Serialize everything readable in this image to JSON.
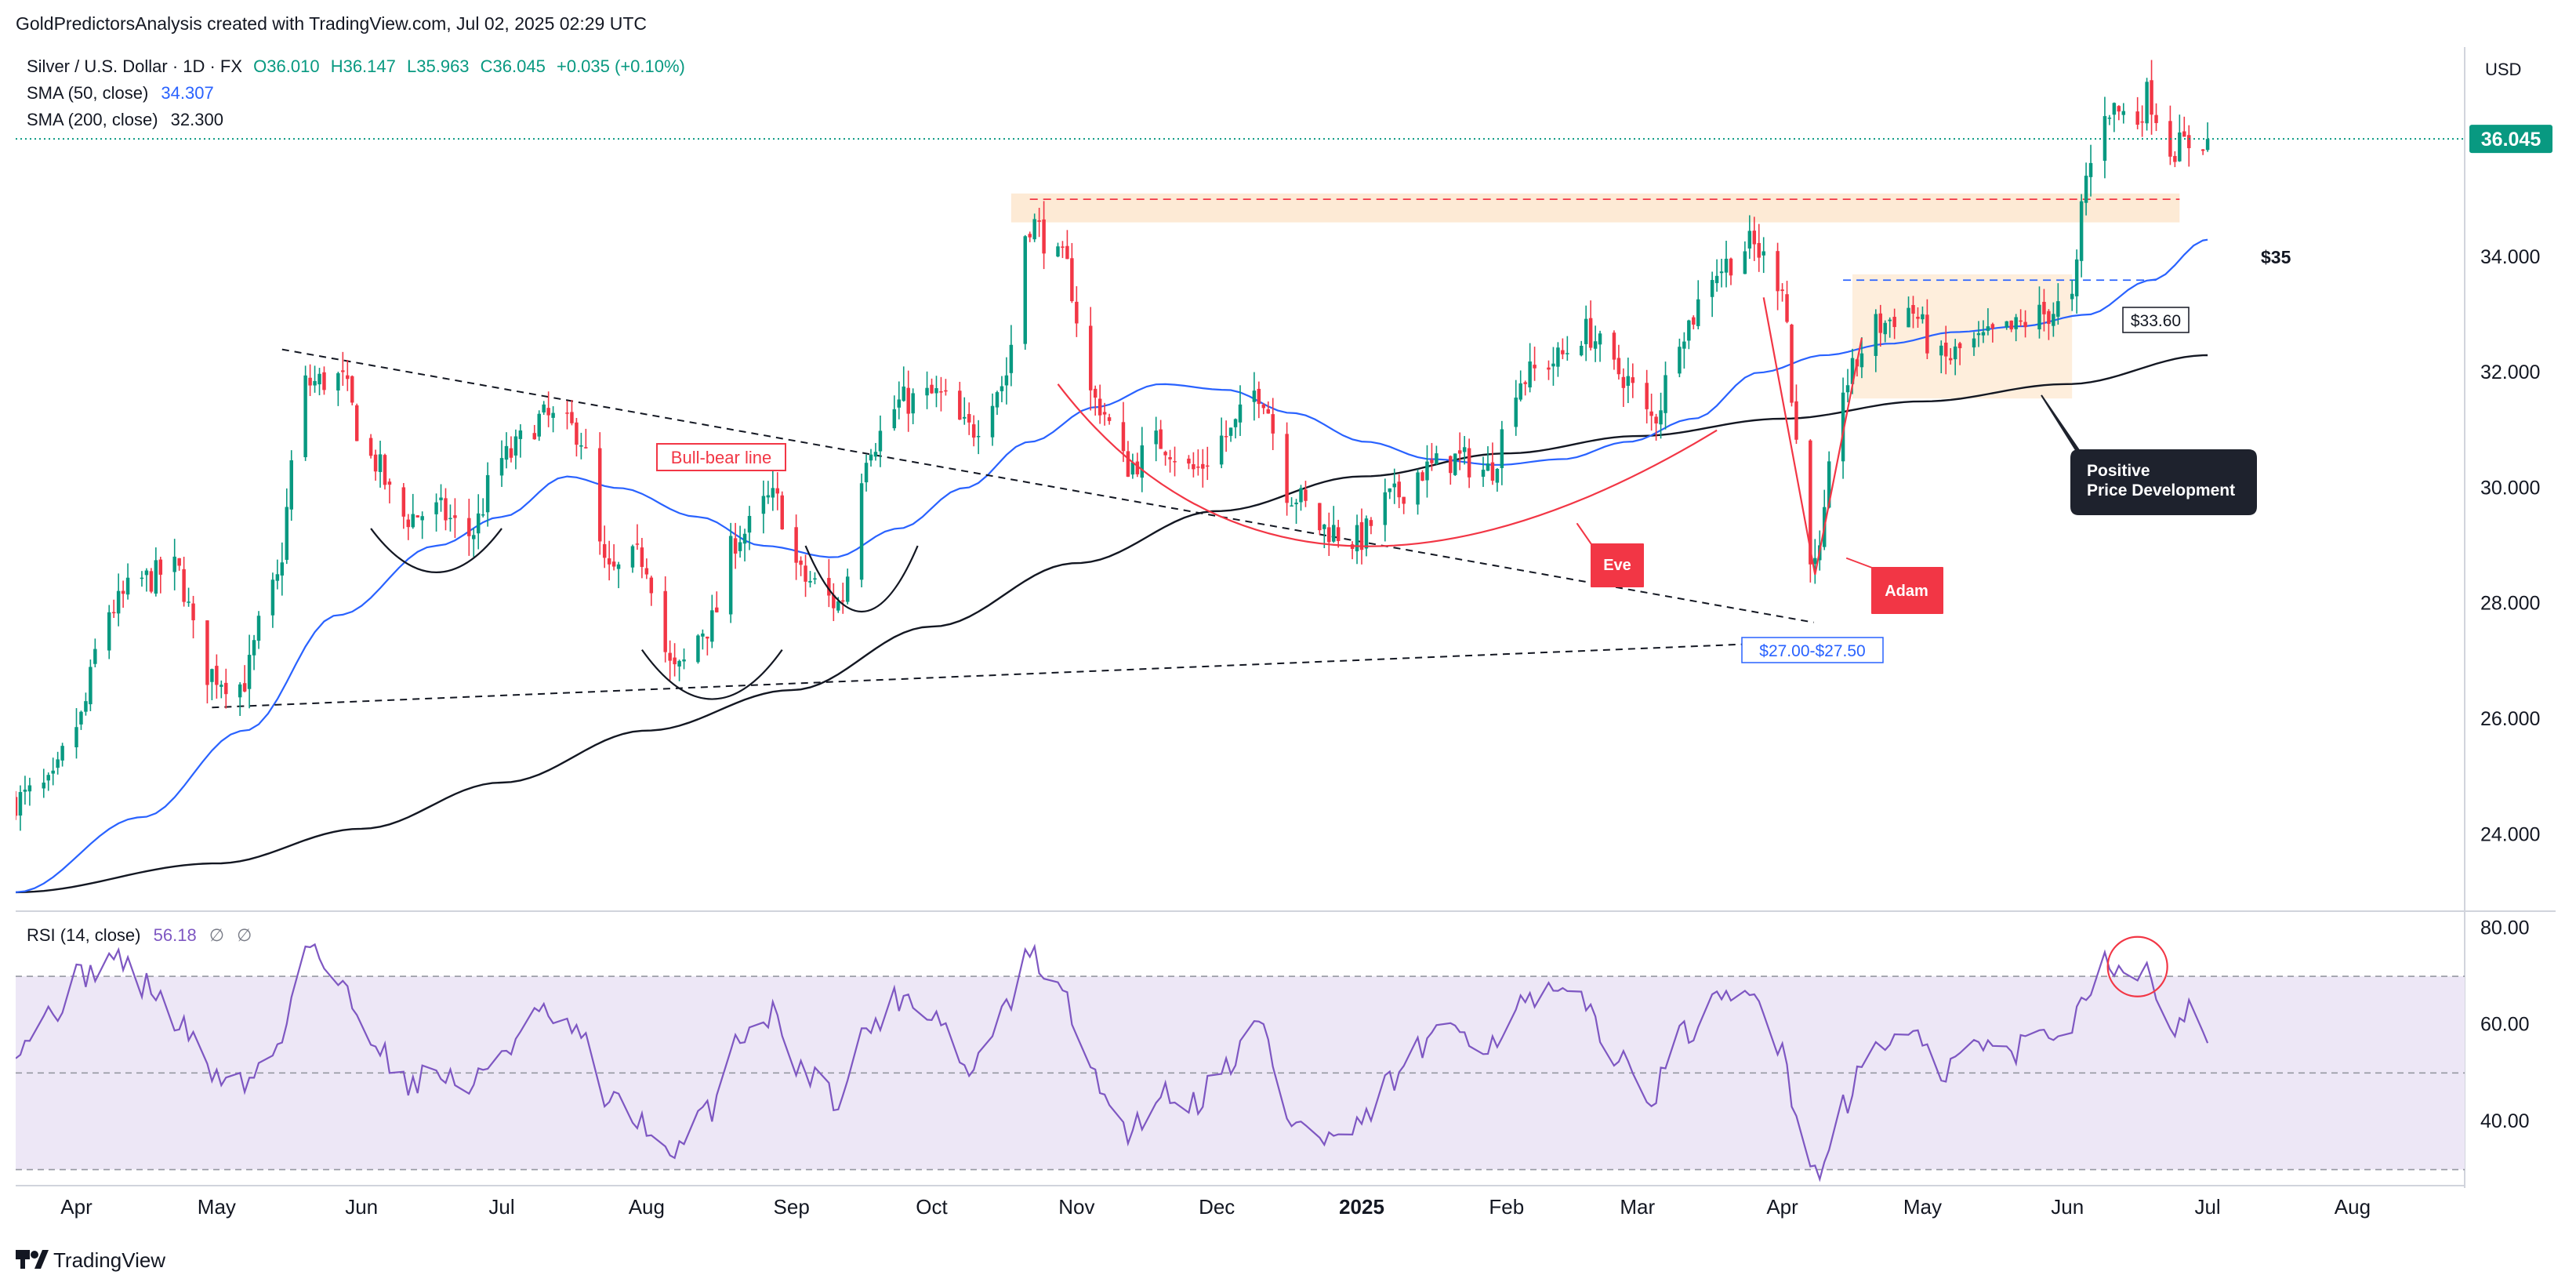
{
  "header": {
    "credit": "GoldPredictorsAnalysis created with TradingView.com, Jul 02, 2025 02:29 UTC"
  },
  "legend": {
    "symbol": "Silver / U.S. Dollar · 1D · FX",
    "open": "O36.010",
    "high": "H36.147",
    "low": "L35.963",
    "close": "C36.045",
    "change": "+0.035 (+0.10%)",
    "sma50_label": "SMA (50, close)",
    "sma50_value": "34.307",
    "sma200_label": "SMA (200, close)",
    "sma200_value": "32.300"
  },
  "rsi_legend": {
    "label": "RSI (14, close)",
    "value": "56.18",
    "extra1": "∅",
    "extra2": "∅"
  },
  "currency": "USD",
  "footer": {
    "brand": "TradingView"
  },
  "colors": {
    "up": "#089981",
    "down": "#f23645",
    "sma50": "#2962ff",
    "sma200": "#131722",
    "rsi": "#7e57c2",
    "rsi_band": "#ede7f6",
    "annotation_red": "#f23645",
    "zone": "#fde8d0",
    "price_tag": "#089981"
  },
  "annotations": {
    "bull_bear": "Bull-bear line",
    "eve": "Eve",
    "adam": "Adam",
    "positive": "Positive",
    "price_dev": "Price Development",
    "level35": "$35",
    "level3360": "$33.60",
    "range2700": "$27.00-$27.50"
  },
  "chart_data": {
    "type": "candlestick",
    "title": "Silver / U.S. Dollar · 1D · FX",
    "last_price": 36.045,
    "last_price_label": "36.045",
    "price_axis": {
      "ylim": [
        22.7,
        37.5
      ],
      "ticks": [
        24,
        26,
        28,
        30,
        32,
        34
      ],
      "tick_labels": [
        "24.000",
        "26.000",
        "28.000",
        "30.000",
        "32.000",
        "34.000"
      ]
    },
    "rsi_axis": {
      "ylim": [
        27,
        83
      ],
      "ticks": [
        40,
        60,
        80
      ],
      "tick_labels": [
        "40.00",
        "60.00",
        "80.00"
      ],
      "overbought": 70,
      "middle": 50,
      "oversold": 30
    },
    "x_axis": {
      "labels": [
        "Apr",
        "May",
        "Jun",
        "Jul",
        "Aug",
        "Sep",
        "Oct",
        "Nov",
        "Dec",
        "2025",
        "Feb",
        "Mar",
        "Apr",
        "May",
        "Jun",
        "Jul",
        "Aug"
      ],
      "label_dates": [
        "2024-04-01",
        "2024-05-01",
        "2024-06-01",
        "2024-07-01",
        "2024-08-01",
        "2024-09-01",
        "2024-10-01",
        "2024-11-01",
        "2024-12-01",
        "2025-01-01",
        "2025-02-01",
        "2025-03-01",
        "2025-04-01",
        "2025-05-01",
        "2025-06-01",
        "2025-07-01",
        "2025-08-01"
      ],
      "start": "2024-03-19",
      "end": "2025-08-25"
    },
    "price_keypoints": [
      [
        "2024-03-19",
        24.6
      ],
      [
        "2024-03-26",
        24.8
      ],
      [
        "2024-04-01",
        25.9
      ],
      [
        "2024-04-08",
        27.9
      ],
      [
        "2024-04-15",
        28.4
      ],
      [
        "2024-04-22",
        28.6
      ],
      [
        "2024-04-29",
        26.8
      ],
      [
        "2024-05-06",
        26.6
      ],
      [
        "2024-05-13",
        28.2
      ],
      [
        "2024-05-20",
        31.8
      ],
      [
        "2024-05-27",
        31.9
      ],
      [
        "2024-06-03",
        30.5
      ],
      [
        "2024-06-10",
        29.5
      ],
      [
        "2024-06-17",
        29.6
      ],
      [
        "2024-06-24",
        29.2
      ],
      [
        "2024-07-01",
        30.5
      ],
      [
        "2024-07-10",
        31.2
      ],
      [
        "2024-07-17",
        31.0
      ],
      [
        "2024-07-24",
        28.5
      ],
      [
        "2024-07-31",
        28.8
      ],
      [
        "2024-08-07",
        26.8
      ],
      [
        "2024-08-14",
        27.6
      ],
      [
        "2024-08-21",
        29.2
      ],
      [
        "2024-08-28",
        29.8
      ],
      [
        "2024-09-04",
        28.4
      ],
      [
        "2024-09-11",
        28.0
      ],
      [
        "2024-09-18",
        30.8
      ],
      [
        "2024-09-25",
        31.5
      ],
      [
        "2024-10-02",
        31.6
      ],
      [
        "2024-10-09",
        31.0
      ],
      [
        "2024-10-16",
        31.8
      ],
      [
        "2024-10-22",
        34.6
      ],
      [
        "2024-10-29",
        33.9
      ],
      [
        "2024-11-05",
        31.5
      ],
      [
        "2024-11-12",
        30.4
      ],
      [
        "2024-11-19",
        30.8
      ],
      [
        "2024-11-26",
        30.3
      ],
      [
        "2024-12-03",
        30.9
      ],
      [
        "2024-12-10",
        31.7
      ],
      [
        "2024-12-17",
        29.9
      ],
      [
        "2024-12-24",
        29.3
      ],
      [
        "2024-12-31",
        29.1
      ],
      [
        "2025-01-07",
        29.8
      ],
      [
        "2025-01-14",
        30.3
      ],
      [
        "2025-01-21",
        30.5
      ],
      [
        "2025-01-28",
        30.3
      ],
      [
        "2025-02-04",
        31.9
      ],
      [
        "2025-02-11",
        32.2
      ],
      [
        "2025-02-18",
        32.7
      ],
      [
        "2025-02-25",
        32.0
      ],
      [
        "2025-03-04",
        31.2
      ],
      [
        "2025-03-11",
        32.8
      ],
      [
        "2025-03-18",
        33.8
      ],
      [
        "2025-03-25",
        34.2
      ],
      [
        "2025-04-01",
        33.6
      ],
      [
        "2025-04-04",
        30.8
      ],
      [
        "2025-04-08",
        28.6
      ],
      [
        "2025-04-14",
        31.8
      ],
      [
        "2025-04-21",
        32.8
      ],
      [
        "2025-04-28",
        33.1
      ],
      [
        "2025-05-05",
        32.2
      ],
      [
        "2025-05-12",
        32.5
      ],
      [
        "2025-05-19",
        32.7
      ],
      [
        "2025-05-26",
        33.0
      ],
      [
        "2025-06-02",
        33.2
      ],
      [
        "2025-06-05",
        35.4
      ],
      [
        "2025-06-09",
        36.6
      ],
      [
        "2025-06-16",
        36.4
      ],
      [
        "2025-06-18",
        36.8
      ],
      [
        "2025-06-23",
        35.9
      ],
      [
        "2025-07-01",
        36.045
      ]
    ],
    "rsi_keypoints": [
      [
        "2024-03-19",
        56
      ],
      [
        "2024-03-26",
        62
      ],
      [
        "2024-04-02",
        70
      ],
      [
        "2024-04-09",
        74
      ],
      [
        "2024-04-16",
        68
      ],
      [
        "2024-04-23",
        60
      ],
      [
        "2024-04-30",
        50
      ],
      [
        "2024-05-07",
        48
      ],
      [
        "2024-05-14",
        55
      ],
      [
        "2024-05-20",
        78
      ],
      [
        "2024-05-27",
        68
      ],
      [
        "2024-06-03",
        58
      ],
      [
        "2024-06-10",
        48
      ],
      [
        "2024-06-17",
        50
      ],
      [
        "2024-06-24",
        47
      ],
      [
        "2024-07-01",
        55
      ],
      [
        "2024-07-10",
        62
      ],
      [
        "2024-07-17",
        58
      ],
      [
        "2024-07-24",
        44
      ],
      [
        "2024-07-31",
        40
      ],
      [
        "2024-08-06",
        32
      ],
      [
        "2024-08-14",
        42
      ],
      [
        "2024-08-21",
        58
      ],
      [
        "2024-08-28",
        62
      ],
      [
        "2024-09-04",
        50
      ],
      [
        "2024-09-11",
        45
      ],
      [
        "2024-09-18",
        60
      ],
      [
        "2024-09-25",
        66
      ],
      [
        "2024-10-02",
        62
      ],
      [
        "2024-10-09",
        50
      ],
      [
        "2024-10-16",
        62
      ],
      [
        "2024-10-22",
        74
      ],
      [
        "2024-10-29",
        66
      ],
      [
        "2024-11-05",
        48
      ],
      [
        "2024-11-12",
        38
      ],
      [
        "2024-11-19",
        46
      ],
      [
        "2024-11-26",
        44
      ],
      [
        "2024-12-03",
        52
      ],
      [
        "2024-12-10",
        60
      ],
      [
        "2024-12-17",
        40
      ],
      [
        "2024-12-24",
        36
      ],
      [
        "2024-12-31",
        38
      ],
      [
        "2025-01-07",
        48
      ],
      [
        "2025-01-14",
        55
      ],
      [
        "2025-01-21",
        60
      ],
      [
        "2025-01-28",
        56
      ],
      [
        "2025-02-04",
        64
      ],
      [
        "2025-02-11",
        66
      ],
      [
        "2025-02-18",
        64
      ],
      [
        "2025-02-25",
        52
      ],
      [
        "2025-03-04",
        46
      ],
      [
        "2025-03-11",
        58
      ],
      [
        "2025-03-18",
        64
      ],
      [
        "2025-03-25",
        66
      ],
      [
        "2025-04-01",
        56
      ],
      [
        "2025-04-04",
        42
      ],
      [
        "2025-04-08",
        29
      ],
      [
        "2025-04-14",
        44
      ],
      [
        "2025-04-21",
        56
      ],
      [
        "2025-04-28",
        58
      ],
      [
        "2025-05-05",
        50
      ],
      [
        "2025-05-12",
        56
      ],
      [
        "2025-05-19",
        54
      ],
      [
        "2025-05-26",
        58
      ],
      [
        "2025-06-02",
        60
      ],
      [
        "2025-06-05",
        68
      ],
      [
        "2025-06-09",
        74
      ],
      [
        "2025-06-13",
        69
      ],
      [
        "2025-06-18",
        72
      ],
      [
        "2025-06-23",
        60
      ],
      [
        "2025-06-27",
        63
      ],
      [
        "2025-07-01",
        56
      ]
    ],
    "sma50_keypoints": [
      [
        "2024-03-19",
        23.0
      ],
      [
        "2024-04-15",
        24.3
      ],
      [
        "2024-05-07",
        25.8
      ],
      [
        "2024-05-27",
        27.8
      ],
      [
        "2024-06-17",
        29.0
      ],
      [
        "2024-07-01",
        29.5
      ],
      [
        "2024-07-15",
        30.2
      ],
      [
        "2024-07-26",
        30.0
      ],
      [
        "2024-08-12",
        29.5
      ],
      [
        "2024-08-26",
        29.0
      ],
      [
        "2024-09-10",
        28.8
      ],
      [
        "2024-09-24",
        29.3
      ],
      [
        "2024-10-08",
        30.0
      ],
      [
        "2024-10-22",
        30.8
      ],
      [
        "2024-11-05",
        31.4
      ],
      [
        "2024-11-19",
        31.8
      ],
      [
        "2024-12-03",
        31.7
      ],
      [
        "2024-12-17",
        31.3
      ],
      [
        "2025-01-02",
        30.8
      ],
      [
        "2025-01-16",
        30.5
      ],
      [
        "2025-01-30",
        30.4
      ],
      [
        "2025-02-13",
        30.5
      ],
      [
        "2025-02-27",
        30.8
      ],
      [
        "2025-03-13",
        31.2
      ],
      [
        "2025-03-27",
        32.0
      ],
      [
        "2025-04-10",
        32.3
      ],
      [
        "2025-04-24",
        32.5
      ],
      [
        "2025-05-08",
        32.7
      ],
      [
        "2025-05-22",
        32.8
      ],
      [
        "2025-06-05",
        33.0
      ],
      [
        "2025-06-19",
        33.6
      ],
      [
        "2025-07-01",
        34.3
      ]
    ],
    "sma200_keypoints": [
      [
        "2024-03-19",
        23.0
      ],
      [
        "2024-05-01",
        23.5
      ],
      [
        "2024-06-01",
        24.1
      ],
      [
        "2024-07-01",
        24.9
      ],
      [
        "2024-08-01",
        25.8
      ],
      [
        "2024-09-01",
        26.5
      ],
      [
        "2024-10-01",
        27.6
      ],
      [
        "2024-11-01",
        28.7
      ],
      [
        "2024-12-01",
        29.6
      ],
      [
        "2025-01-01",
        30.2
      ],
      [
        "2025-02-01",
        30.6
      ],
      [
        "2025-03-01",
        30.9
      ],
      [
        "2025-04-01",
        31.2
      ],
      [
        "2025-05-01",
        31.5
      ],
      [
        "2025-06-01",
        31.8
      ],
      [
        "2025-07-01",
        32.3
      ]
    ],
    "levels": {
      "resistance": 35.0,
      "resistance_label": "$35",
      "range_top": 33.6,
      "range_label": "$33.60",
      "support_range": [
        27.0,
        27.5
      ],
      "support_label": "$27.00-$27.50"
    },
    "trendlines": {
      "bull_bear": [
        [
          "2024-05-15",
          32.4
        ],
        [
          "2025-04-01",
          27.7
        ]
      ],
      "support": [
        [
          "2024-04-30",
          26.2
        ],
        [
          "2025-04-01",
          27.3
        ]
      ]
    }
  }
}
